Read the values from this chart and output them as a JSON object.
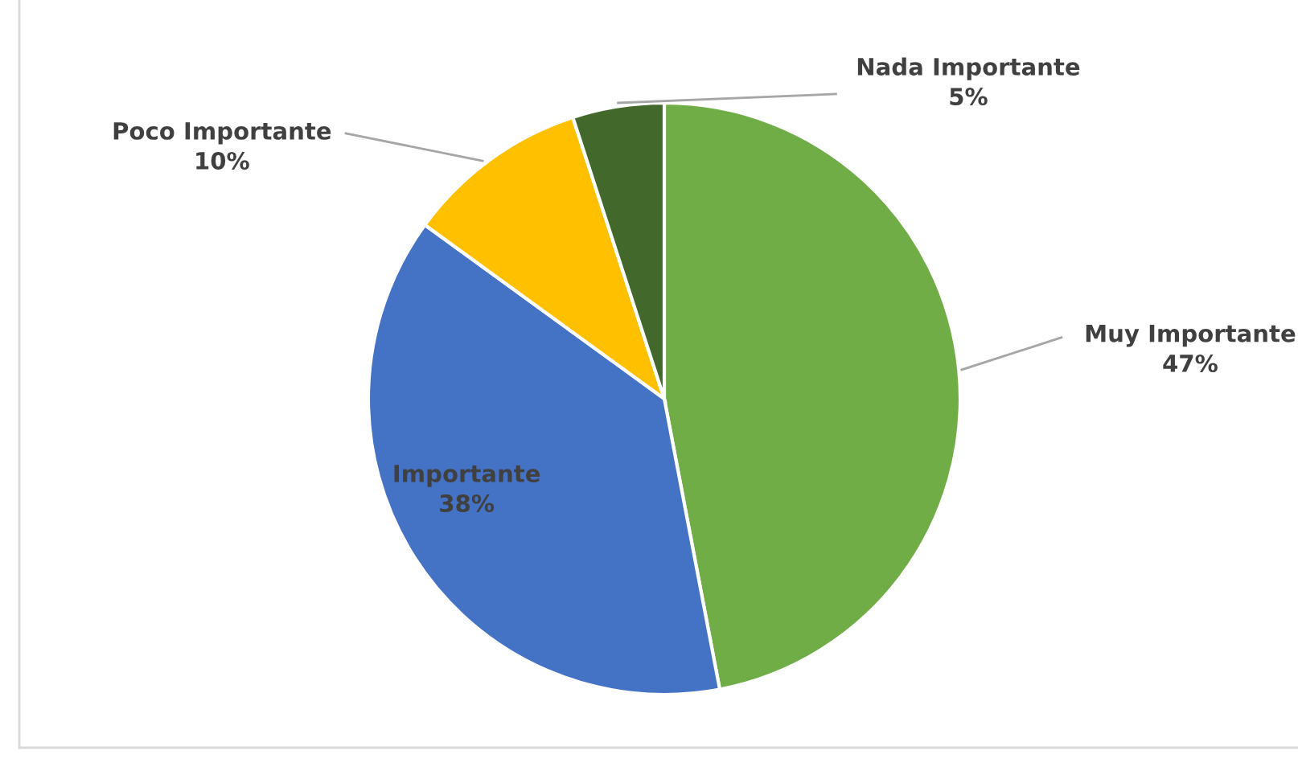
{
  "chart_data": {
    "type": "pie",
    "categories": [
      "Muy Importante",
      "Importante",
      "Poco Importante",
      "Nada Importante"
    ],
    "values": [
      47,
      38,
      10,
      5
    ],
    "value_labels": [
      "47%",
      "38%",
      "10%",
      "5%"
    ],
    "colors": [
      "#70ad47",
      "#4472c4",
      "#ffc000",
      "#43682b"
    ]
  }
}
